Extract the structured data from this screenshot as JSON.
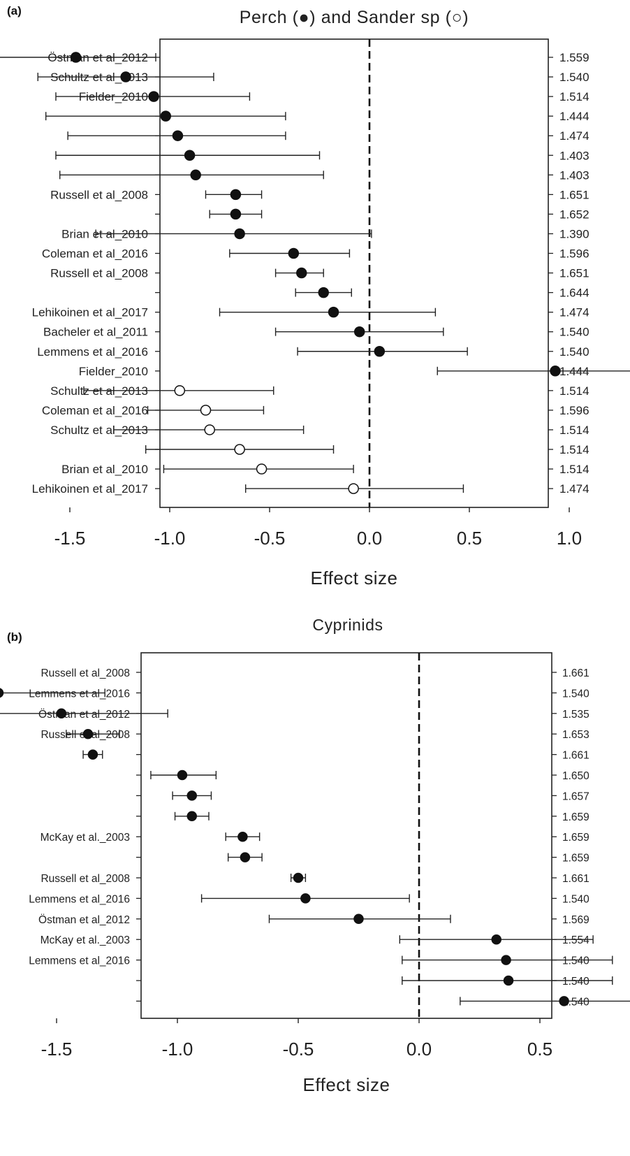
{
  "chart_data": [
    {
      "type": "forest",
      "panel_label": "(a)",
      "title": "Perch (●) and Sander sp (○)",
      "xlabel": "Effect size",
      "xlim": [
        -2.2,
        1.8
      ],
      "x_ticks": [
        "-2.0",
        "-1.5",
        "-1.0",
        "-0.5",
        "0.0",
        "0.5",
        "1.0",
        "1.5"
      ],
      "reference_line": 0.0,
      "series": [
        {
          "name": "Perch",
          "marker": "filled"
        },
        {
          "name": "Sander sp",
          "marker": "open"
        }
      ],
      "rows": [
        {
          "label": "Östman et al_2012",
          "effect": -1.47,
          "lower": -1.87,
          "upper": -1.07,
          "weight": "1.559",
          "group": "Perch"
        },
        {
          "label": "Schultz et al_2013",
          "effect": -1.22,
          "lower": -1.66,
          "upper": -0.78,
          "weight": "1.540",
          "group": "Perch"
        },
        {
          "label": "Fielder_2010",
          "effect": -1.08,
          "lower": -1.57,
          "upper": -0.6,
          "weight": "1.514",
          "group": "Perch"
        },
        {
          "label": "",
          "effect": -1.02,
          "lower": -1.62,
          "upper": -0.42,
          "weight": "1.444",
          "group": "Perch"
        },
        {
          "label": "",
          "effect": -0.96,
          "lower": -1.51,
          "upper": -0.42,
          "weight": "1.474",
          "group": "Perch"
        },
        {
          "label": "",
          "effect": -0.9,
          "lower": -1.57,
          "upper": -0.25,
          "weight": "1.403",
          "group": "Perch"
        },
        {
          "label": "",
          "effect": -0.87,
          "lower": -1.55,
          "upper": -0.23,
          "weight": "1.403",
          "group": "Perch"
        },
        {
          "label": "Russell et al_2008",
          "effect": -0.67,
          "lower": -0.82,
          "upper": -0.54,
          "weight": "1.651",
          "group": "Perch"
        },
        {
          "label": "",
          "effect": -0.67,
          "lower": -0.8,
          "upper": -0.54,
          "weight": "1.652",
          "group": "Perch"
        },
        {
          "label": "Brian et al_2010",
          "effect": -0.65,
          "lower": -1.37,
          "upper": 0.01,
          "weight": "1.390",
          "group": "Perch"
        },
        {
          "label": "Coleman et al_2016",
          "effect": -0.38,
          "lower": -0.7,
          "upper": -0.1,
          "weight": "1.596",
          "group": "Perch"
        },
        {
          "label": "Russell et al_2008",
          "effect": -0.34,
          "lower": -0.47,
          "upper": -0.23,
          "weight": "1.651",
          "group": "Perch"
        },
        {
          "label": "",
          "effect": -0.23,
          "lower": -0.37,
          "upper": -0.09,
          "weight": "1.644",
          "group": "Perch"
        },
        {
          "label": "Lehikoinen et al_2017",
          "effect": -0.18,
          "lower": -0.75,
          "upper": 0.33,
          "weight": "1.474",
          "group": "Perch"
        },
        {
          "label": "Bacheler et al_2011",
          "effect": -0.05,
          "lower": -0.47,
          "upper": 0.37,
          "weight": "1.540",
          "group": "Perch"
        },
        {
          "label": "Lemmens et al_2016",
          "effect": 0.05,
          "lower": -0.36,
          "upper": 0.49,
          "weight": "1.540",
          "group": "Perch"
        },
        {
          "label": "Fielder_2010",
          "effect": 0.93,
          "lower": 0.34,
          "upper": 1.52,
          "weight": "1.444",
          "group": "Perch"
        },
        {
          "label": "Schultz et al_2013",
          "effect": -0.95,
          "lower": -1.43,
          "upper": -0.48,
          "weight": "1.514",
          "group": "Sander sp"
        },
        {
          "label": "Coleman et al_2016",
          "effect": -0.82,
          "lower": -1.11,
          "upper": -0.53,
          "weight": "1.596",
          "group": "Sander sp"
        },
        {
          "label": "Schultz et al_2013",
          "effect": -0.8,
          "lower": -1.28,
          "upper": -0.33,
          "weight": "1.514",
          "group": "Sander sp"
        },
        {
          "label": "",
          "effect": -0.65,
          "lower": -1.12,
          "upper": -0.18,
          "weight": "1.514",
          "group": "Sander sp"
        },
        {
          "label": "Brian et al_2010",
          "effect": -0.54,
          "lower": -1.03,
          "upper": -0.08,
          "weight": "1.514",
          "group": "Sander sp"
        },
        {
          "label": "Lehikoinen et al_2017",
          "effect": -0.08,
          "lower": -0.62,
          "upper": 0.47,
          "weight": "1.474",
          "group": "Sander sp"
        }
      ]
    },
    {
      "type": "forest",
      "panel_label": "(b)",
      "title": "Cyprinids",
      "xlabel": "Effect size",
      "xlim": [
        -2.3,
        1.1
      ],
      "x_ticks": [
        "-2.0",
        "-1.5",
        "-1.0",
        "-0.5",
        "0.0",
        "0.5",
        "1.0"
      ],
      "reference_line": 0.0,
      "rows": [
        {
          "label": "Russell et al_2008",
          "effect": -1.79,
          "lower": -1.83,
          "upper": -1.75,
          "weight": "1.661"
        },
        {
          "label": "Lemmens et al_2016",
          "effect": -1.74,
          "lower": -2.18,
          "upper": -1.3,
          "weight": "1.540"
        },
        {
          "label": "Östman et al_2012",
          "effect": -1.48,
          "lower": -1.91,
          "upper": -1.04,
          "weight": "1.535"
        },
        {
          "label": "Russell et al_2008",
          "effect": -1.37,
          "lower": -1.46,
          "upper": -1.24,
          "weight": "1.653"
        },
        {
          "label": "",
          "effect": -1.35,
          "lower": -1.39,
          "upper": -1.31,
          "weight": "1.661"
        },
        {
          "label": "",
          "effect": -0.98,
          "lower": -1.11,
          "upper": -0.84,
          "weight": "1.650"
        },
        {
          "label": "",
          "effect": -0.94,
          "lower": -1.02,
          "upper": -0.86,
          "weight": "1.657"
        },
        {
          "label": "",
          "effect": -0.94,
          "lower": -1.01,
          "upper": -0.87,
          "weight": "1.659"
        },
        {
          "label": "McKay et al._2003",
          "effect": -0.73,
          "lower": -0.8,
          "upper": -0.66,
          "weight": "1.659"
        },
        {
          "label": "",
          "effect": -0.72,
          "lower": -0.79,
          "upper": -0.65,
          "weight": "1.659"
        },
        {
          "label": "Russell et al_2008",
          "effect": -0.5,
          "lower": -0.53,
          "upper": -0.47,
          "weight": "1.661"
        },
        {
          "label": "Lemmens et al_2016",
          "effect": -0.47,
          "lower": -0.9,
          "upper": -0.04,
          "weight": "1.540"
        },
        {
          "label": "Östman et al_2012",
          "effect": -0.25,
          "lower": -0.62,
          "upper": 0.13,
          "weight": "1.569"
        },
        {
          "label": "McKay et al._2003",
          "effect": 0.32,
          "lower": -0.08,
          "upper": 0.72,
          "weight": "1.554"
        },
        {
          "label": "Lemmens et al_2016",
          "effect": 0.36,
          "lower": -0.07,
          "upper": 0.8,
          "weight": "1.540"
        },
        {
          "label": "",
          "effect": 0.37,
          "lower": -0.07,
          "upper": 0.8,
          "weight": "1.540"
        },
        {
          "label": "",
          "effect": 0.6,
          "lower": 0.17,
          "upper": 1.03,
          "weight": "1.540"
        }
      ]
    }
  ]
}
